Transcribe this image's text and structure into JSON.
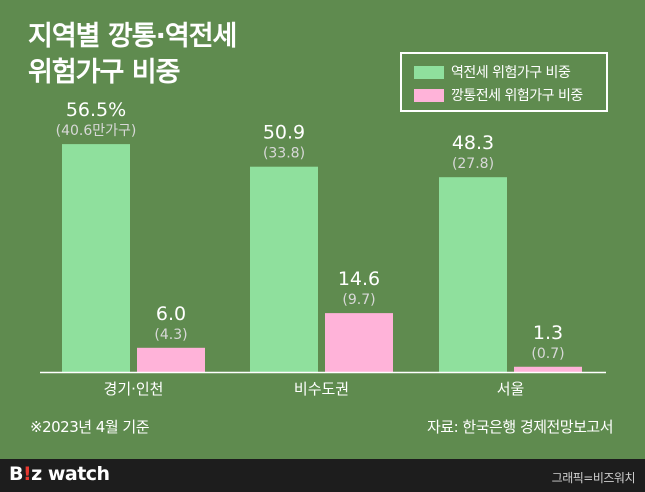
{
  "title_line1": "지역별 깡통·역전세",
  "title_line2": "위험가구 비중",
  "note_left": "※2023년 4월 기준",
  "note_right": "자료: 한국은행 경제전망보고서",
  "brand_prefix": "B",
  "brand_accent": "!",
  "brand_z": "z",
  "brand_suffix": " watch",
  "credit": "그래픽=비즈워치",
  "colors": {
    "background": "#5f8b4f",
    "reverse": "#8fe09d",
    "empty": "#ffb3d9",
    "footer": "#1d1d1d",
    "brand_accent": "#e8382f"
  },
  "chart_data": {
    "type": "bar",
    "categories": [
      "경기·인천",
      "비수도권",
      "서울"
    ],
    "ylim": [
      0,
      60
    ],
    "series": [
      {
        "name": "역전세 위험가구 비중",
        "values": [
          56.5,
          50.9,
          48.3
        ],
        "labels": [
          "56.5%",
          "50.9",
          "48.3"
        ],
        "sublabels": [
          "(40.6만가구)",
          "(33.8)",
          "(27.8)"
        ]
      },
      {
        "name": "깡통전세 위험가구 비중",
        "values": [
          6.0,
          14.6,
          1.3
        ],
        "labels": [
          "6.0",
          "14.6",
          "1.3"
        ],
        "sublabels": [
          "(4.3)",
          "(9.7)",
          "(0.7)"
        ]
      }
    ]
  }
}
